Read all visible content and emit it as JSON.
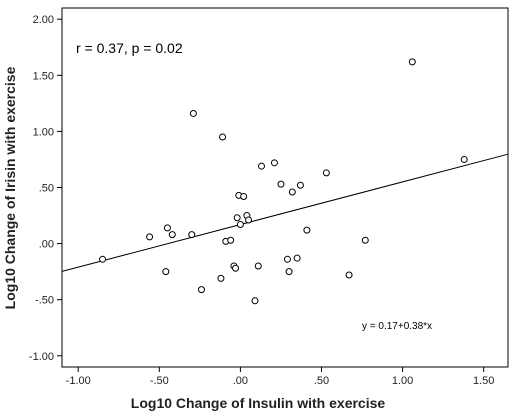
{
  "chart_data": {
    "type": "scatter",
    "xlabel": "Log10 Change of Insulin with exercise",
    "ylabel": "Log10 Change of Irisin with exercise",
    "xlim": [
      -1.1,
      1.65
    ],
    "ylim": [
      -1.1,
      2.1
    ],
    "x_ticks": [
      -1.0,
      -0.5,
      0.0,
      0.5,
      1.0,
      1.5
    ],
    "x_tick_labels": [
      "-1.00",
      "-.50",
      ".00",
      ".50",
      "1.00",
      "1.50"
    ],
    "y_ticks": [
      -1.0,
      -0.5,
      0.0,
      0.5,
      1.0,
      1.5,
      2.0
    ],
    "y_tick_labels": [
      "-1.00",
      "-.50",
      ".00",
      ".50",
      "1.00",
      "1.50",
      "2.00"
    ],
    "annotation": "r = 0.37, p = 0.02",
    "fit_equation": "y = 0.17+0.38*x",
    "fit_line": {
      "intercept": 0.17,
      "slope": 0.38
    },
    "grid": false,
    "points": [
      {
        "x": -0.85,
        "y": -0.14
      },
      {
        "x": -0.56,
        "y": 0.06
      },
      {
        "x": -0.45,
        "y": 0.14
      },
      {
        "x": -0.46,
        "y": -0.25
      },
      {
        "x": -0.42,
        "y": 0.08
      },
      {
        "x": -0.3,
        "y": 0.08
      },
      {
        "x": -0.29,
        "y": 1.16
      },
      {
        "x": -0.24,
        "y": -0.41
      },
      {
        "x": -0.12,
        "y": -0.31
      },
      {
        "x": -0.11,
        "y": 0.95
      },
      {
        "x": -0.09,
        "y": 0.02
      },
      {
        "x": -0.06,
        "y": 0.03
      },
      {
        "x": -0.04,
        "y": -0.2
      },
      {
        "x": -0.03,
        "y": -0.22
      },
      {
        "x": -0.02,
        "y": 0.23
      },
      {
        "x": -0.01,
        "y": 0.43
      },
      {
        "x": 0.0,
        "y": 0.17
      },
      {
        "x": 0.02,
        "y": 0.42
      },
      {
        "x": 0.04,
        "y": 0.25
      },
      {
        "x": 0.05,
        "y": 0.21
      },
      {
        "x": 0.09,
        "y": -0.51
      },
      {
        "x": 0.11,
        "y": -0.2
      },
      {
        "x": 0.13,
        "y": 0.69
      },
      {
        "x": 0.21,
        "y": 0.72
      },
      {
        "x": 0.25,
        "y": 0.53
      },
      {
        "x": 0.29,
        "y": -0.14
      },
      {
        "x": 0.3,
        "y": -0.25
      },
      {
        "x": 0.32,
        "y": 0.46
      },
      {
        "x": 0.35,
        "y": -0.13
      },
      {
        "x": 0.37,
        "y": 0.52
      },
      {
        "x": 0.41,
        "y": 0.12
      },
      {
        "x": 0.53,
        "y": 0.63
      },
      {
        "x": 0.67,
        "y": -0.28
      },
      {
        "x": 0.77,
        "y": 0.03
      },
      {
        "x": 1.06,
        "y": 1.62
      },
      {
        "x": 1.38,
        "y": 0.75
      }
    ]
  }
}
